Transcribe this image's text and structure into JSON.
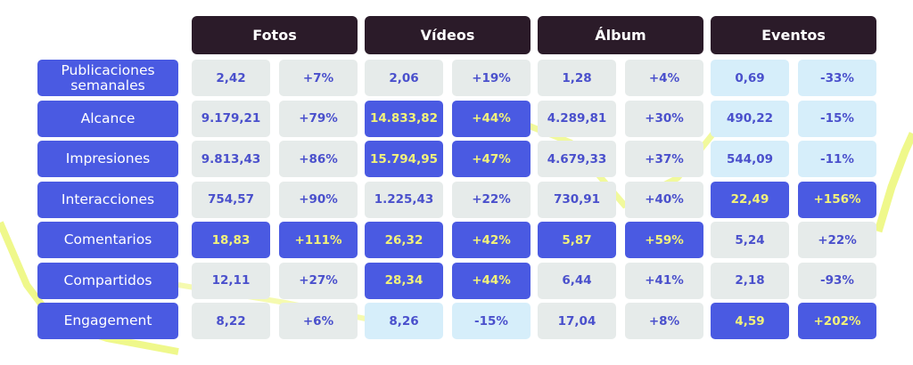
{
  "table": {
    "columns": [
      "Fotos",
      "Vídeos",
      "Álbum",
      "Eventos"
    ],
    "rows": [
      {
        "label": "Publicaciones semanales",
        "cells": [
          "2,42",
          "+7%",
          "2,06",
          "+19%",
          "1,28",
          "+4%",
          "0,69",
          "-33%"
        ],
        "tones": [
          "gray",
          "gray",
          "gray",
          "light"
        ]
      },
      {
        "label": "Alcance",
        "cells": [
          "9.179,21",
          "+79%",
          "14.833,82",
          "+44%",
          "4.289,81",
          "+30%",
          "490,22",
          "-15%"
        ],
        "tones": [
          "gray",
          "blue",
          "gray",
          "light"
        ]
      },
      {
        "label": "Impresiones",
        "cells": [
          "9.813,43",
          "+86%",
          "15.794,95",
          "+47%",
          "4.679,33",
          "+37%",
          "544,09",
          "-11%"
        ],
        "tones": [
          "gray",
          "blue",
          "gray",
          "light"
        ]
      },
      {
        "label": "Interacciones",
        "cells": [
          "754,57",
          "+90%",
          "1.225,43",
          "+22%",
          "730,91",
          "+40%",
          "22,49",
          "+156%"
        ],
        "tones": [
          "gray",
          "gray",
          "gray",
          "blue"
        ]
      },
      {
        "label": "Comentarios",
        "cells": [
          "18,83",
          "+111%",
          "26,32",
          "+42%",
          "5,87",
          "+59%",
          "5,24",
          "+22%"
        ],
        "tones": [
          "blue",
          "blue",
          "blue",
          "gray"
        ]
      },
      {
        "label": "Compartidos",
        "cells": [
          "12,11",
          "+27%",
          "28,34",
          "+44%",
          "6,44",
          "+41%",
          "2,18",
          "-93%"
        ],
        "tones": [
          "gray",
          "blue",
          "gray",
          "gray"
        ]
      },
      {
        "label": "Engagement",
        "cells": [
          "8,22",
          "+6%",
          "8,26",
          "-15%",
          "17,04",
          "+8%",
          "4,59",
          "+202%"
        ],
        "tones": [
          "gray",
          "light",
          "gray",
          "blue"
        ]
      }
    ]
  }
}
